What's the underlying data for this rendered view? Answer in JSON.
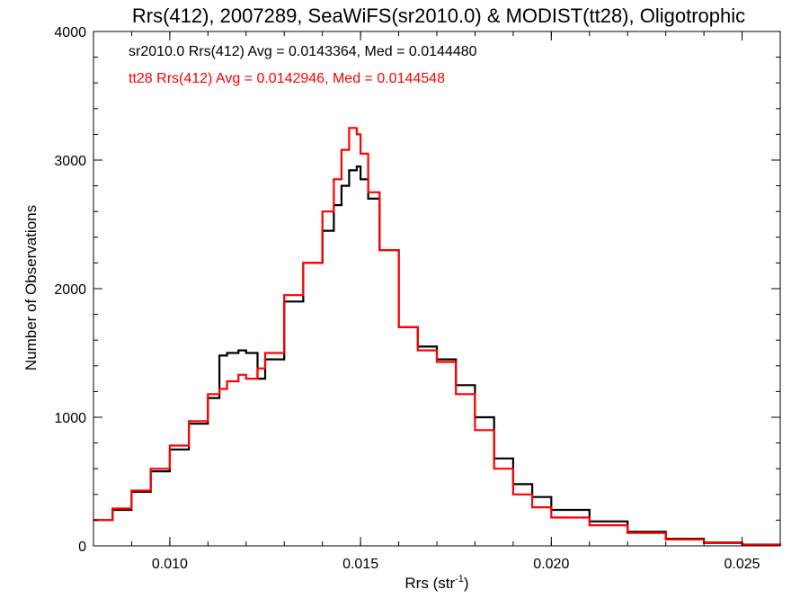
{
  "chart_data": {
    "type": "line",
    "title": "Rrs(412), 2007289, SeaWiFS(sr2010.0) & MODIST(tt28), Oligotrophic",
    "xlabel": "Rrs (str",
    "xlabel_sup": "-1",
    "xlabel_close": ")",
    "ylabel": "Number of Observations",
    "xlim": [
      0.008,
      0.026
    ],
    "ylim": [
      0,
      4000
    ],
    "x_ticks": [
      0.01,
      0.015,
      0.02,
      0.025
    ],
    "x_tick_labels": [
      "0.010",
      "0.015",
      "0.020",
      "0.025"
    ],
    "y_ticks": [
      0,
      1000,
      2000,
      3000,
      4000
    ],
    "y_tick_labels": [
      "0",
      "1000",
      "2000",
      "3000",
      "4000"
    ],
    "grid": false,
    "legend_position": "top-left",
    "series": [
      {
        "name": "sr2010.0",
        "color": "#000000",
        "annotation": "sr2010.0 Rrs(412) Avg = 0.0143364, Med = 0.0144480",
        "x": [
          0.008,
          0.0085,
          0.009,
          0.0095,
          0.01,
          0.0105,
          0.011,
          0.0113,
          0.0115,
          0.0118,
          0.012,
          0.0123,
          0.0125,
          0.013,
          0.0135,
          0.014,
          0.0143,
          0.0145,
          0.0147,
          0.0149,
          0.015,
          0.0152,
          0.0155,
          0.016,
          0.0165,
          0.017,
          0.0175,
          0.018,
          0.0185,
          0.019,
          0.0195,
          0.02,
          0.021,
          0.022,
          0.023,
          0.024,
          0.025,
          0.026
        ],
        "y": [
          200,
          280,
          420,
          580,
          750,
          950,
          1150,
          1480,
          1500,
          1520,
          1500,
          1300,
          1450,
          1900,
          2200,
          2450,
          2650,
          2800,
          2920,
          2950,
          2850,
          2700,
          2300,
          1700,
          1550,
          1450,
          1250,
          1000,
          680,
          480,
          380,
          280,
          190,
          110,
          55,
          25,
          10,
          5
        ]
      },
      {
        "name": "tt28",
        "color": "#ff0000",
        "annotation": "tt28 Rrs(412) Avg = 0.0142946, Med = 0.0144548",
        "x": [
          0.008,
          0.0085,
          0.009,
          0.0095,
          0.01,
          0.0105,
          0.011,
          0.0113,
          0.0115,
          0.0118,
          0.012,
          0.0123,
          0.0125,
          0.013,
          0.0135,
          0.014,
          0.0143,
          0.0145,
          0.0147,
          0.0149,
          0.015,
          0.0152,
          0.0155,
          0.016,
          0.0165,
          0.017,
          0.0175,
          0.018,
          0.0185,
          0.019,
          0.0195,
          0.02,
          0.021,
          0.022,
          0.023,
          0.024,
          0.025,
          0.026
        ],
        "y": [
          200,
          290,
          430,
          600,
          780,
          970,
          1180,
          1220,
          1280,
          1330,
          1300,
          1380,
          1500,
          1950,
          2200,
          2600,
          2850,
          3080,
          3250,
          3200,
          3050,
          2750,
          2300,
          1700,
          1520,
          1430,
          1180,
          900,
          600,
          400,
          300,
          220,
          160,
          100,
          50,
          22,
          8,
          4
        ]
      }
    ]
  }
}
